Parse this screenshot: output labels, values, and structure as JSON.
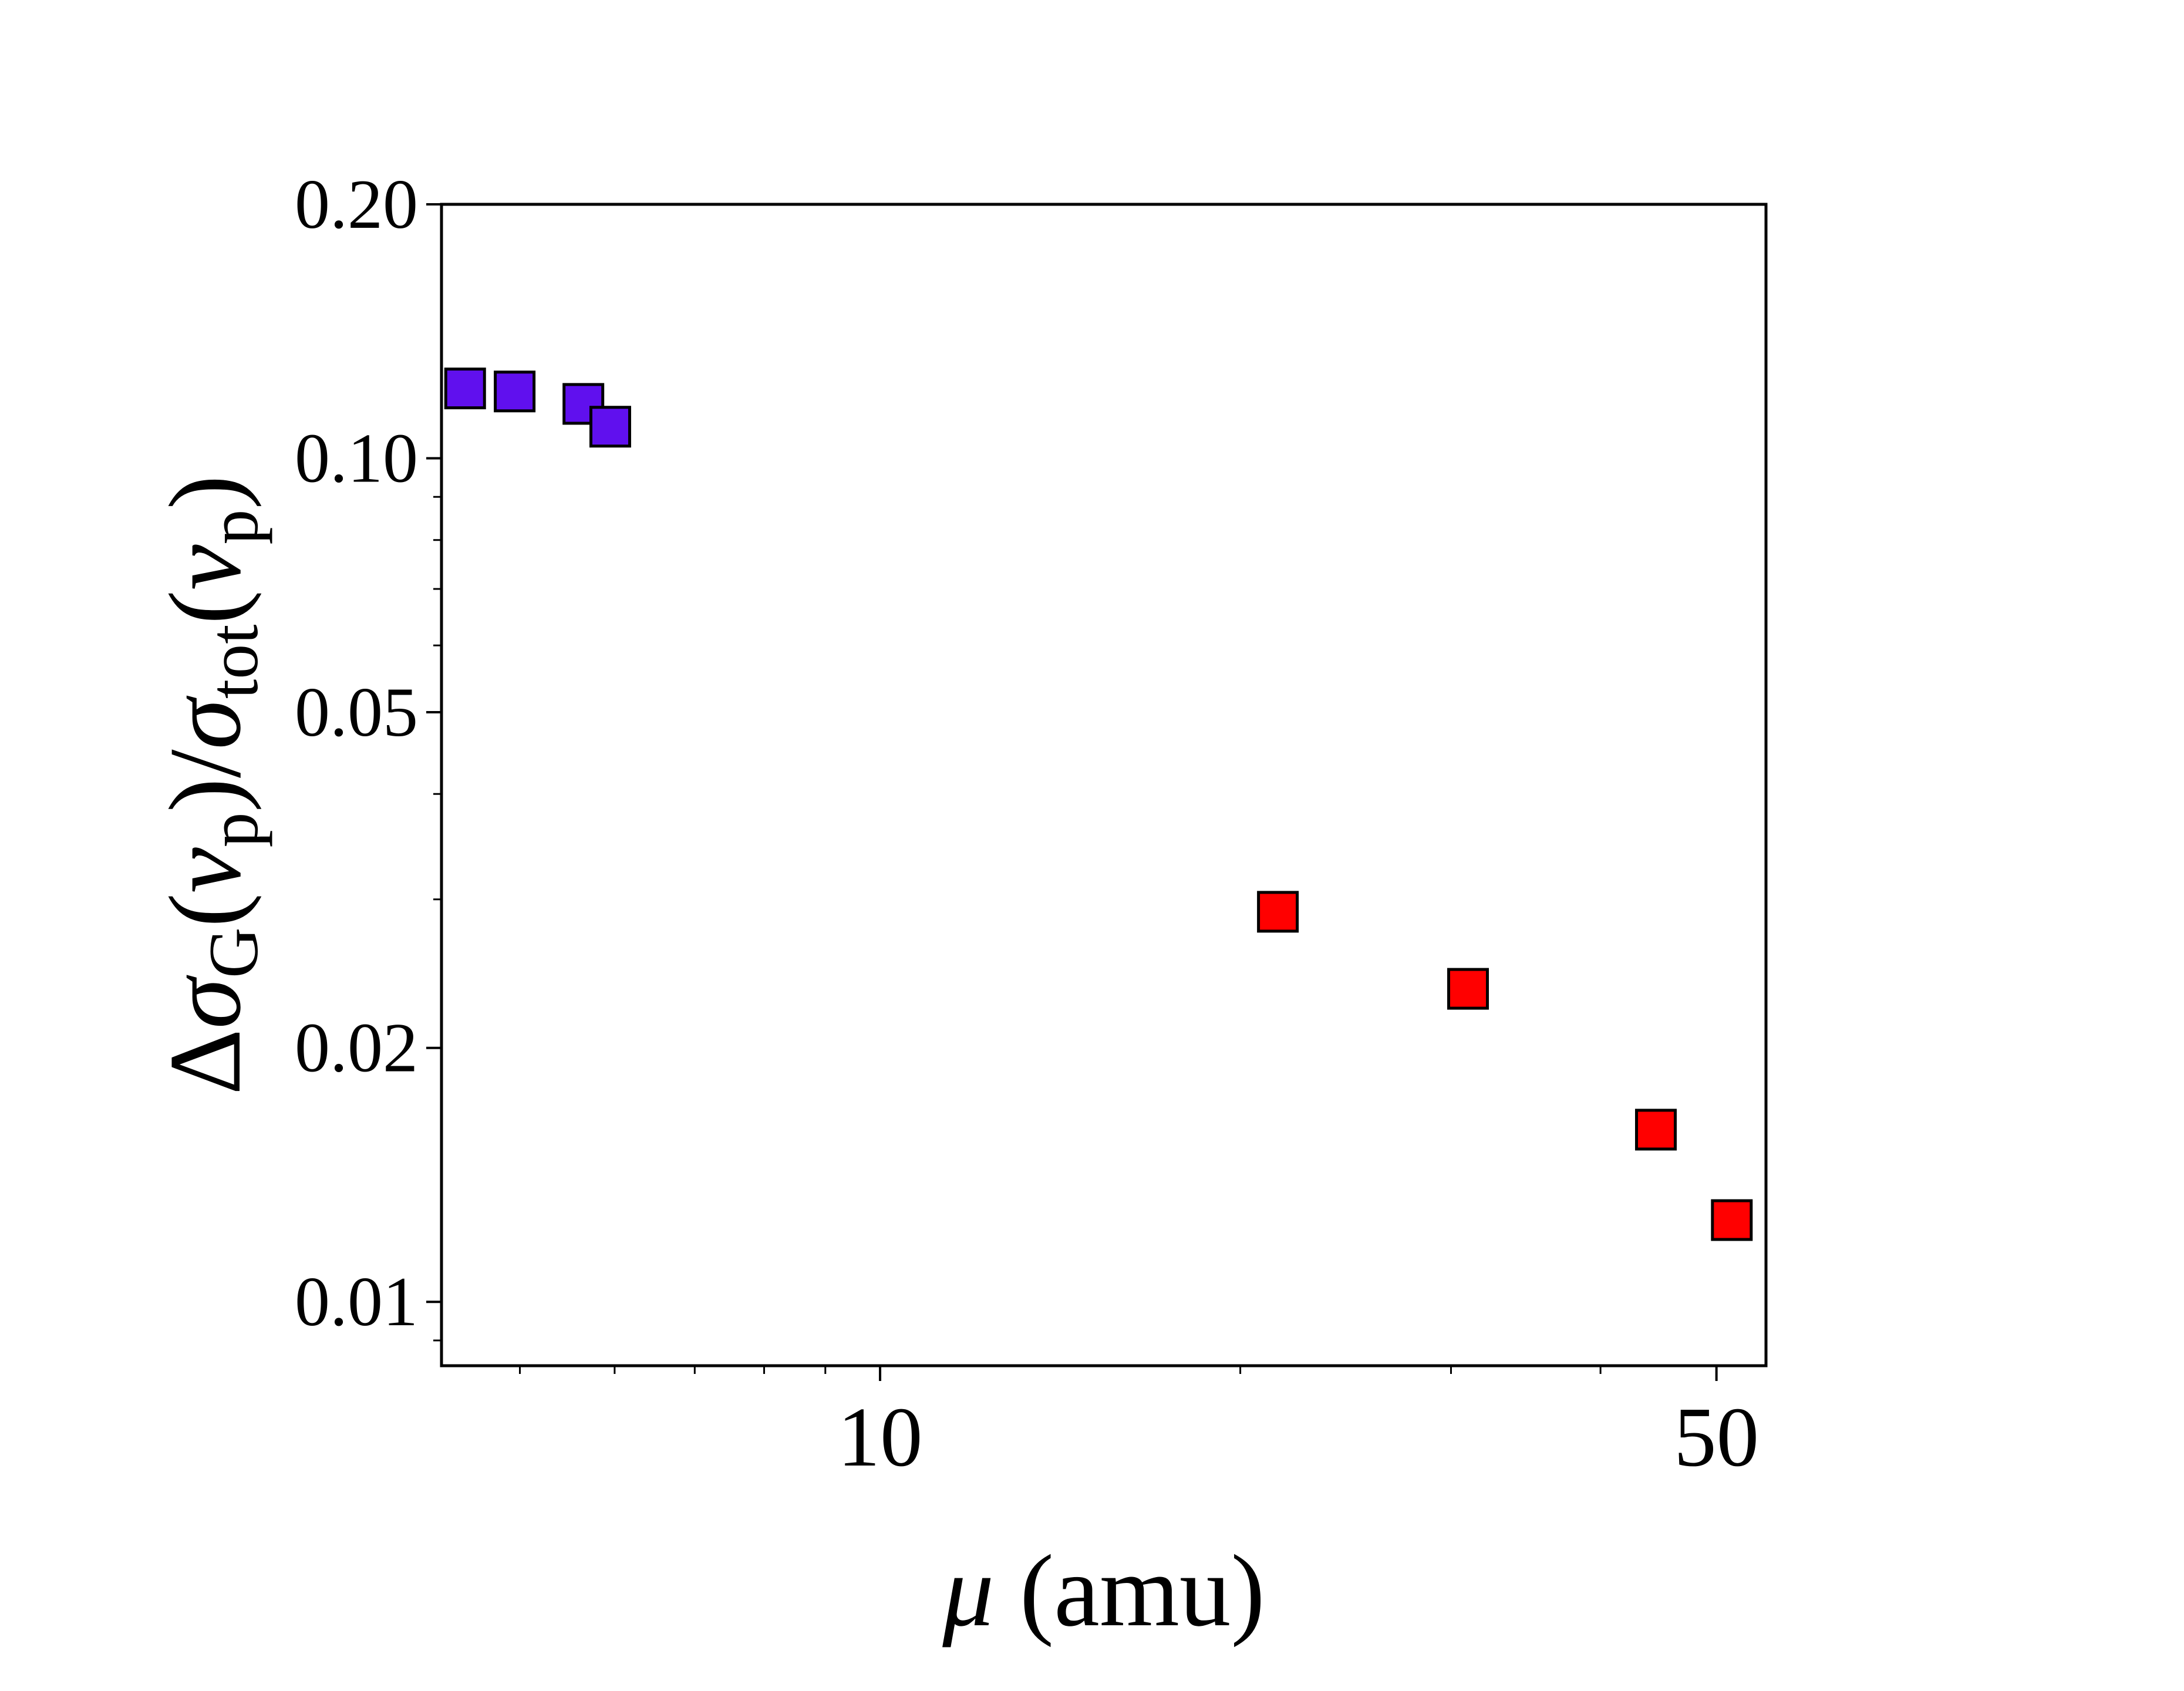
{
  "chart_data": {
    "type": "scatter",
    "title": "",
    "xlabel": {
      "symbol": "μ",
      "rest": " (amu)"
    },
    "ylabel": {
      "delta": "Δ",
      "sigma1": "σ",
      "sub1": "G",
      "nu1": "ν",
      "nusub1": "p",
      "slash": "/",
      "sigma2": "σ",
      "sub2": "tot",
      "nu2": "ν",
      "nusub2": "p"
    },
    "xscale": "log",
    "yscale": "log",
    "xlim": [
      4.3,
      55
    ],
    "ylim": [
      0.0084,
      0.2
    ],
    "x_ticks": [
      {
        "value": 10,
        "label": "10"
      },
      {
        "value": 50,
        "label": "50"
      }
    ],
    "y_ticks": [
      {
        "value": 0.01,
        "label": "0.01"
      },
      {
        "value": 0.02,
        "label": "0.02"
      },
      {
        "value": 0.05,
        "label": "0.05"
      },
      {
        "value": 0.1,
        "label": "0.10"
      },
      {
        "value": 0.2,
        "label": "0.20"
      }
    ],
    "grid": false,
    "legend": "none",
    "marker": "square",
    "series": [
      {
        "color": "#6010ee",
        "x": [
          4.5,
          4.95,
          5.65,
          5.95
        ],
        "y": [
          0.121,
          0.12,
          0.116,
          0.109
        ]
      },
      {
        "color": "#ff0000",
        "x": [
          21.5,
          31.0,
          44.5,
          51.5
        ],
        "y": [
          0.029,
          0.0235,
          0.016,
          0.0125
        ]
      }
    ]
  }
}
